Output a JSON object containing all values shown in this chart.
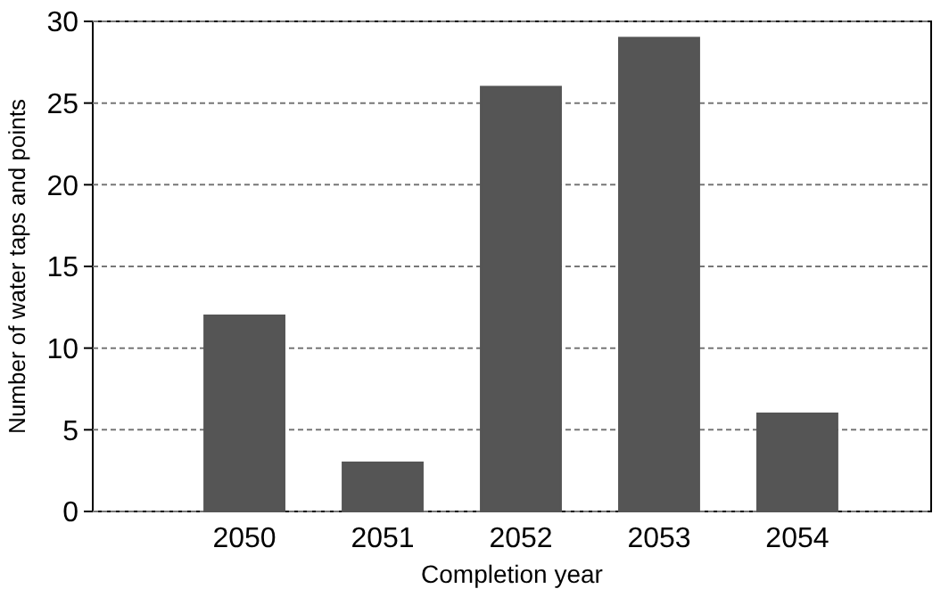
{
  "chart_data": {
    "type": "bar",
    "xlabel": "Completion year",
    "ylabel": "Number of water taps and points",
    "categories": [
      "2050",
      "2051",
      "2052",
      "2053",
      "2054"
    ],
    "values": [
      12,
      3,
      26,
      29,
      6
    ],
    "color": "#555555",
    "ylim": [
      0,
      30
    ],
    "yticks": [
      0,
      5,
      10,
      15,
      20,
      25,
      30
    ],
    "grid": "y"
  }
}
